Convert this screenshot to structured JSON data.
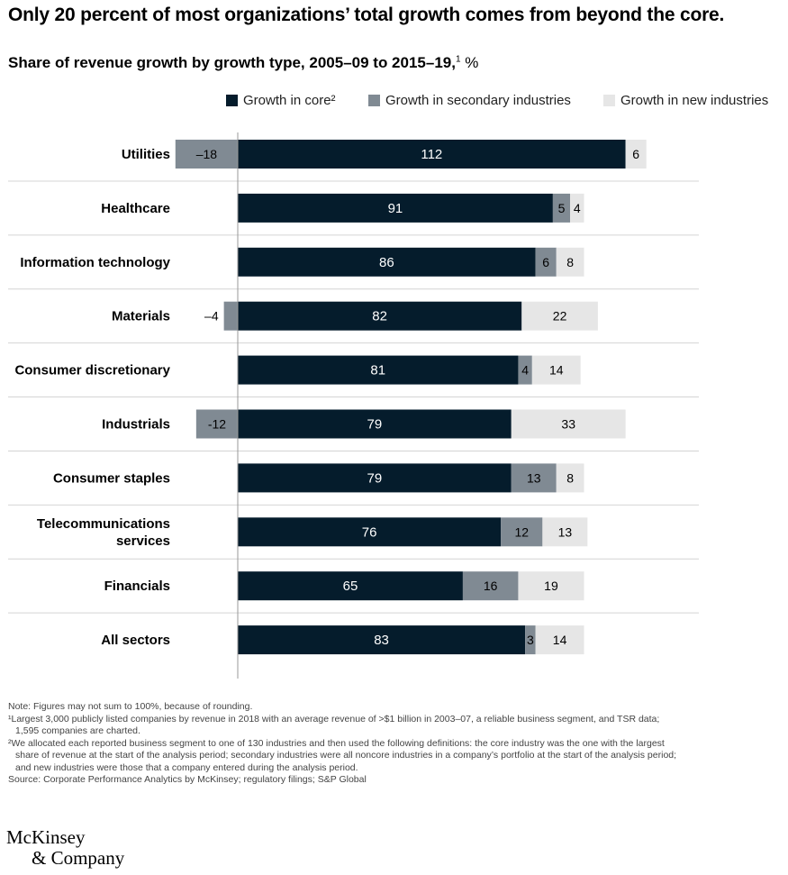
{
  "title": "Only 20 percent of most organizations’ total growth comes from beyond the core.",
  "subtitle": "Share of revenue growth by growth type, 2005–09 to 2015–19,",
  "subtitle_footnote": "1",
  "subtitle_unit": " %",
  "colors": {
    "core": "#051c2c",
    "secondary": "#808a93",
    "new": "#e6e6e6",
    "gridline": "#d4d4d4",
    "axis": "#999999"
  },
  "chart_data": {
    "type": "bar",
    "orientation": "horizontal",
    "stacked": true,
    "title": "Share of revenue growth by growth type, 2005–09 to 2015–19",
    "unit": "%",
    "categories": [
      "Utilities",
      "Healthcare",
      "Information technology",
      "Materials",
      "Consumer discretionary",
      "Industrials",
      "Consumer staples",
      "Telecommunications services",
      "Financials",
      "All sectors"
    ],
    "category_lines": [
      [
        "Utilities"
      ],
      [
        "Healthcare"
      ],
      [
        "Information technology"
      ],
      [
        "Materials"
      ],
      [
        "Consumer discretionary"
      ],
      [
        "Industrials"
      ],
      [
        "Consumer staples"
      ],
      [
        "Telecommunications",
        "services"
      ],
      [
        "Financials"
      ],
      [
        "All sectors"
      ]
    ],
    "series": [
      {
        "name": "Growth in core²",
        "key": "core",
        "values": [
          112,
          91,
          86,
          82,
          81,
          79,
          79,
          76,
          65,
          83
        ]
      },
      {
        "name": "Growth in secondary industries",
        "key": "secondary",
        "values": [
          -18,
          5,
          6,
          -4,
          4,
          -12,
          13,
          12,
          16,
          3
        ]
      },
      {
        "name": "Growth in new industries",
        "key": "new",
        "values": [
          6,
          4,
          8,
          22,
          14,
          33,
          8,
          13,
          19,
          14
        ]
      }
    ],
    "value_labels": {
      "core": [
        "112",
        "91",
        "86",
        "82",
        "81",
        "79",
        "79",
        "76",
        "65",
        "83"
      ],
      "secondary": [
        "–18",
        "5",
        "6",
        "–4",
        "4",
        "-12",
        "13",
        "12",
        "16",
        "3"
      ],
      "new": [
        "6",
        "4",
        "8",
        "22",
        "14",
        "33",
        "8",
        "13",
        "19",
        "14"
      ]
    },
    "legend_position": "top"
  },
  "notes": {
    "note": "Note: Figures may not sum to 100%, because of rounding.",
    "fn1_line1": "¹Largest 3,000 publicly listed companies by revenue in 2018 with an average revenue of >$1 billion in 2003–07, a reliable business segment, and TSR data;",
    "fn1_line2": "1,595 companies are charted.",
    "fn2_line1": "²We allocated each reported business segment to one of 130 industries and then used the following definitions: the core industry was the one with the largest",
    "fn2_line2": "share of revenue at the start of the analysis period; secondary industries were all noncore industries in a company’s portfolio at the start of the analysis period;",
    "fn2_line3": "and new industries were those that a company entered during the analysis period.",
    "source": "Source: Corporate Performance Analytics by McKinsey; regulatory filings; S&P Global"
  },
  "logo": {
    "line1": "McKinsey",
    "line2": "& Company"
  }
}
